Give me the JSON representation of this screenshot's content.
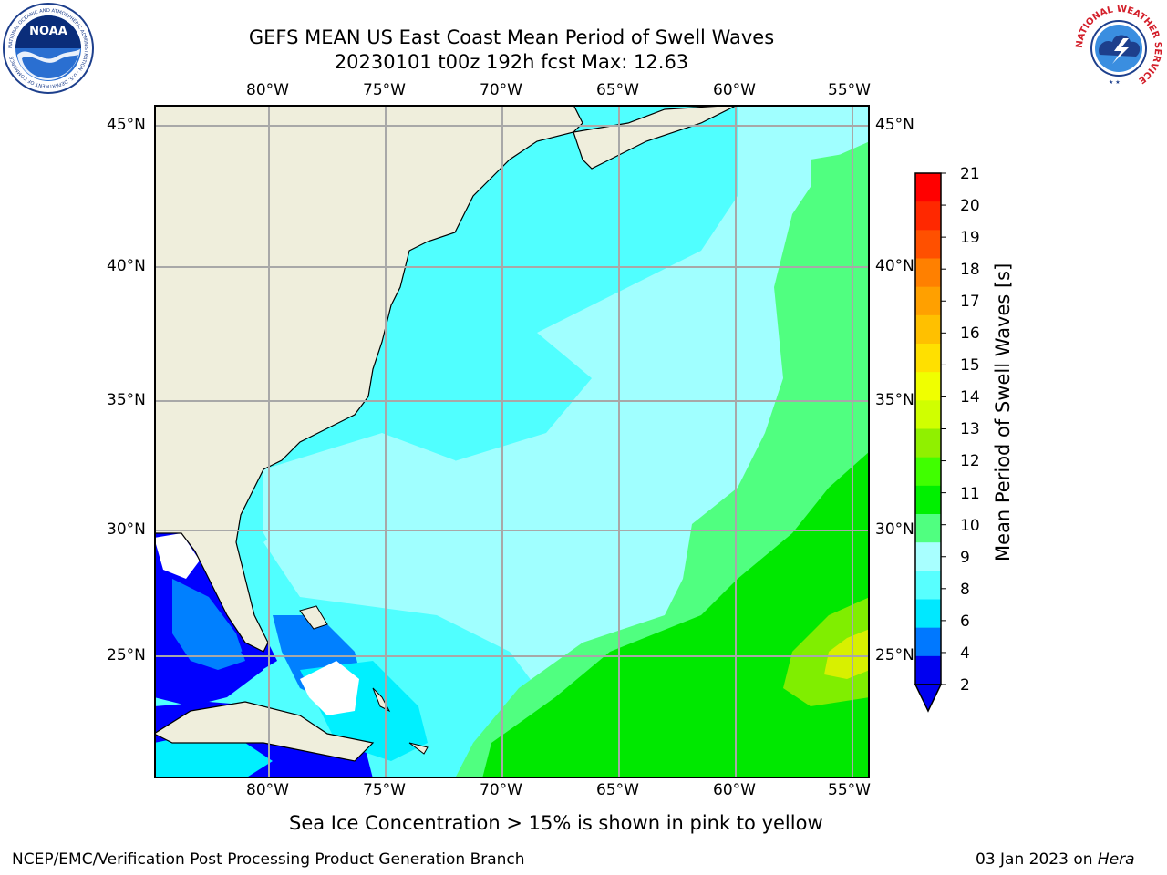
{
  "title": {
    "line1": "GEFS MEAN US East Coast Mean Period of Swell Waves",
    "line2": "20230101 t00z 192h fcst   Max: 12.63"
  },
  "map": {
    "lon_ticks": [
      "80°W",
      "75°W",
      "70°W",
      "65°W",
      "60°W",
      "55°W"
    ],
    "lat_ticks": [
      "45°N",
      "40°N",
      "35°N",
      "30°N",
      "25°N"
    ],
    "land_color": "#efeedc",
    "ocean_colors": [
      "#0000ff",
      "#0080ff",
      "#00f0ff",
      "#50ffff",
      "#a0ffff",
      "#50ff80",
      "#00e800",
      "#80ee00",
      "#e0f000"
    ]
  },
  "colorbar": {
    "label": "Mean Period of Swell Waves [s]",
    "ticks": [
      "21",
      "20",
      "19",
      "18",
      "17",
      "16",
      "15",
      "14",
      "13",
      "12",
      "11",
      "10",
      "9",
      "8",
      "6",
      "4",
      "2"
    ],
    "colors": [
      "#0000f0",
      "#0078ff",
      "#00e8ff",
      "#58ffff",
      "#a8ffff",
      "#50ff80",
      "#00f000",
      "#40ff00",
      "#90f000",
      "#d0ff00",
      "#f0ff00",
      "#ffe000",
      "#ffc000",
      "#ffa000",
      "#ff8000",
      "#ff5000",
      "#ff2800",
      "#ff0000"
    ]
  },
  "note": "Sea Ice Concentration > 15% is shown in pink to yellow",
  "footer": {
    "left": "NCEP/EMC/Verification Post Processing Product Generation Branch",
    "right_date": "03 Jan 2023 on ",
    "right_host": "Hera"
  },
  "logos": {
    "noaa_text": "NOAA",
    "noaa_ring": "NATIONAL OCEANIC AND ATMOSPHERIC ADMINISTRATION · U.S. DEPARTMENT OF COMMERCE",
    "nws_ring": "NATIONAL WEATHER SERVICE"
  }
}
